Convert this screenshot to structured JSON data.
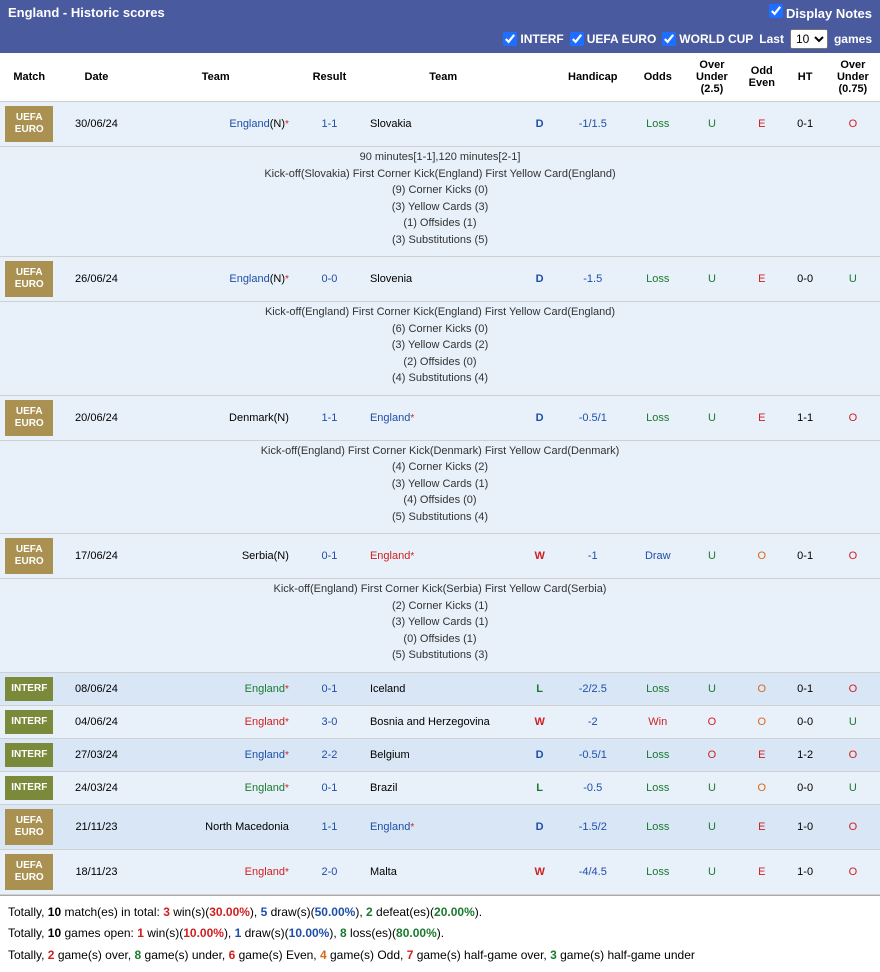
{
  "header": {
    "title": "England - Historic scores",
    "displayNotes": "Display Notes"
  },
  "filters": {
    "interf": "INTERF",
    "uefa": "UEFA EURO",
    "worldcup": "WORLD CUP",
    "lastPrefix": "Last",
    "lastSuffix": "games",
    "lastValue": "10"
  },
  "columns": [
    "Match",
    "Date",
    "Team",
    "Result",
    "Team",
    "",
    "Handicap",
    "Odds",
    "Over Under (2.5)",
    "Odd Even",
    "HT",
    "Over Under (0.75)"
  ],
  "rows": [
    {
      "badge": "UEFA EURO",
      "badgeClass": "badge-uefa",
      "date": "30/06/24",
      "home": "England",
      "homeN": "(N)",
      "homeClass": "c-blue",
      "homeStar": true,
      "result": "1-1",
      "resultClass": "c-blue",
      "away": "Slovakia",
      "awayClass": "c-black",
      "wdl": "D",
      "wdlClass": "c-blue",
      "hcap": "-1/1.5",
      "odds": "Loss",
      "oddsClass": "c-green",
      "ou1": "U",
      "ou1Class": "c-green",
      "oe": "E",
      "oeClass": "c-red",
      "ht": "0-1",
      "ou2": "O",
      "ou2Class": "c-red",
      "rowClass": "row-light",
      "notes": [
        "90 minutes[1-1],120 minutes[2-1]",
        "Kick-off(Slovakia)  First Corner Kick(England)  First Yellow Card(England)",
        "(9) Corner Kicks (0)",
        "(3) Yellow Cards (3)",
        "(1) Offsides (1)",
        "(3) Substitutions (5)"
      ]
    },
    {
      "badge": "UEFA EURO",
      "badgeClass": "badge-uefa",
      "date": "26/06/24",
      "home": "England",
      "homeN": "(N)",
      "homeClass": "c-blue",
      "homeStar": true,
      "result": "0-0",
      "resultClass": "c-blue",
      "away": "Slovenia",
      "awayClass": "c-black",
      "wdl": "D",
      "wdlClass": "c-blue",
      "hcap": "-1.5",
      "odds": "Loss",
      "oddsClass": "c-green",
      "ou1": "U",
      "ou1Class": "c-green",
      "oe": "E",
      "oeClass": "c-red",
      "ht": "0-0",
      "ou2": "U",
      "ou2Class": "c-green",
      "rowClass": "row-light",
      "notes": [
        "Kick-off(England)  First Corner Kick(England)  First Yellow Card(England)",
        "(6) Corner Kicks (0)",
        "(3) Yellow Cards (2)",
        "(2) Offsides (0)",
        "(4) Substitutions (4)"
      ]
    },
    {
      "badge": "UEFA EURO",
      "badgeClass": "badge-uefa",
      "date": "20/06/24",
      "home": "Denmark",
      "homeN": "(N)",
      "homeClass": "c-black",
      "result": "1-1",
      "resultClass": "c-blue",
      "away": "England",
      "awayClass": "c-blue",
      "awayStar": true,
      "wdl": "D",
      "wdlClass": "c-blue",
      "hcap": "-0.5/1",
      "odds": "Loss",
      "oddsClass": "c-green",
      "ou1": "U",
      "ou1Class": "c-green",
      "oe": "E",
      "oeClass": "c-red",
      "ht": "1-1",
      "ou2": "O",
      "ou2Class": "c-red",
      "rowClass": "row-light",
      "notes": [
        "Kick-off(England)  First Corner Kick(Denmark)  First Yellow Card(Denmark)",
        "(4) Corner Kicks (2)",
        "(3) Yellow Cards (1)",
        "(4) Offsides (0)",
        "(5) Substitutions (4)"
      ]
    },
    {
      "badge": "UEFA EURO",
      "badgeClass": "badge-uefa",
      "date": "17/06/24",
      "home": "Serbia",
      "homeN": "(N)",
      "homeClass": "c-black",
      "result": "0-1",
      "resultClass": "c-blue",
      "away": "England",
      "awayClass": "c-red",
      "awayStar": true,
      "wdl": "W",
      "wdlClass": "c-red",
      "hcap": "-1",
      "odds": "Draw",
      "oddsClass": "c-blue",
      "ou1": "U",
      "ou1Class": "c-green",
      "oe": "O",
      "oeClass": "c-orange",
      "ht": "0-1",
      "ou2": "O",
      "ou2Class": "c-red",
      "rowClass": "row-light",
      "notes": [
        "Kick-off(England)  First Corner Kick(Serbia)  First Yellow Card(Serbia)",
        "(2) Corner Kicks (1)",
        "(3) Yellow Cards (1)",
        "(0) Offsides (1)",
        "(5) Substitutions (3)"
      ]
    },
    {
      "badge": "INTERF",
      "badgeClass": "badge-interf",
      "date": "08/06/24",
      "home": "England",
      "homeClass": "c-green",
      "homeStar": true,
      "result": "0-1",
      "resultClass": "c-blue",
      "away": "Iceland",
      "awayClass": "c-black",
      "wdl": "L",
      "wdlClass": "c-green",
      "hcap": "-2/2.5",
      "odds": "Loss",
      "oddsClass": "c-green",
      "ou1": "U",
      "ou1Class": "c-green",
      "oe": "O",
      "oeClass": "c-orange",
      "ht": "0-1",
      "ou2": "O",
      "ou2Class": "c-red",
      "rowClass": "row-lighter"
    },
    {
      "badge": "INTERF",
      "badgeClass": "badge-interf",
      "date": "04/06/24",
      "home": "England",
      "homeClass": "c-red",
      "homeStar": true,
      "result": "3-0",
      "resultClass": "c-blue",
      "away": "Bosnia and Herzegovina",
      "awayClass": "c-black",
      "wdl": "W",
      "wdlClass": "c-red",
      "hcap": "-2",
      "odds": "Win",
      "oddsClass": "c-red",
      "ou1": "O",
      "ou1Class": "c-red",
      "oe": "O",
      "oeClass": "c-orange",
      "ht": "0-0",
      "ou2": "U",
      "ou2Class": "c-green",
      "rowClass": "row-light"
    },
    {
      "badge": "INTERF",
      "badgeClass": "badge-interf",
      "date": "27/03/24",
      "home": "England",
      "homeClass": "c-blue",
      "homeStar": true,
      "result": "2-2",
      "resultClass": "c-blue",
      "away": "Belgium",
      "awayClass": "c-black",
      "wdl": "D",
      "wdlClass": "c-blue",
      "hcap": "-0.5/1",
      "odds": "Loss",
      "oddsClass": "c-green",
      "ou1": "O",
      "ou1Class": "c-red",
      "oe": "E",
      "oeClass": "c-red",
      "ht": "1-2",
      "ou2": "O",
      "ou2Class": "c-red",
      "rowClass": "row-lighter"
    },
    {
      "badge": "INTERF",
      "badgeClass": "badge-interf",
      "date": "24/03/24",
      "home": "England",
      "homeClass": "c-green",
      "homeStar": true,
      "result": "0-1",
      "resultClass": "c-blue",
      "away": "Brazil",
      "awayClass": "c-black",
      "wdl": "L",
      "wdlClass": "c-green",
      "hcap": "-0.5",
      "odds": "Loss",
      "oddsClass": "c-green",
      "ou1": "U",
      "ou1Class": "c-green",
      "oe": "O",
      "oeClass": "c-orange",
      "ht": "0-0",
      "ou2": "U",
      "ou2Class": "c-green",
      "rowClass": "row-light"
    },
    {
      "badge": "UEFA EURO",
      "badgeClass": "badge-uefa",
      "date": "21/11/23",
      "home": "North Macedonia",
      "homeClass": "c-black",
      "result": "1-1",
      "resultClass": "c-blue",
      "away": "England",
      "awayClass": "c-blue",
      "awayStar": true,
      "wdl": "D",
      "wdlClass": "c-blue",
      "hcap": "-1.5/2",
      "odds": "Loss",
      "oddsClass": "c-green",
      "ou1": "U",
      "ou1Class": "c-green",
      "oe": "E",
      "oeClass": "c-red",
      "ht": "1-0",
      "ou2": "O",
      "ou2Class": "c-red",
      "rowClass": "row-lighter"
    },
    {
      "badge": "UEFA EURO",
      "badgeClass": "badge-uefa",
      "date": "18/11/23",
      "home": "England",
      "homeClass": "c-red",
      "homeStar": true,
      "result": "2-0",
      "resultClass": "c-blue",
      "away": "Malta",
      "awayClass": "c-black",
      "wdl": "W",
      "wdlClass": "c-red",
      "hcap": "-4/4.5",
      "odds": "Loss",
      "oddsClass": "c-green",
      "ou1": "U",
      "ou1Class": "c-green",
      "oe": "E",
      "oeClass": "c-red",
      "ht": "1-0",
      "ou2": "O",
      "ou2Class": "c-red",
      "rowClass": "row-light"
    }
  ],
  "summary": [
    {
      "parts": [
        {
          "t": "Totally, "
        },
        {
          "t": "10",
          "c": "bold"
        },
        {
          "t": " match(es) in total: "
        },
        {
          "t": "3",
          "c": "c-red"
        },
        {
          "t": " win(s)("
        },
        {
          "t": "30.00%",
          "c": "c-red"
        },
        {
          "t": "), "
        },
        {
          "t": "5",
          "c": "c-blue"
        },
        {
          "t": " draw(s)("
        },
        {
          "t": "50.00%",
          "c": "c-blue"
        },
        {
          "t": "), "
        },
        {
          "t": "2",
          "c": "c-green"
        },
        {
          "t": " defeat(es)("
        },
        {
          "t": "20.00%",
          "c": "c-green"
        },
        {
          "t": ")."
        }
      ]
    },
    {
      "parts": [
        {
          "t": "Totally, "
        },
        {
          "t": "10",
          "c": "bold"
        },
        {
          "t": " games open: "
        },
        {
          "t": "1",
          "c": "c-red"
        },
        {
          "t": " win(s)("
        },
        {
          "t": "10.00%",
          "c": "c-red"
        },
        {
          "t": "), "
        },
        {
          "t": "1",
          "c": "c-blue"
        },
        {
          "t": " draw(s)("
        },
        {
          "t": "10.00%",
          "c": "c-blue"
        },
        {
          "t": "), "
        },
        {
          "t": "8",
          "c": "c-green"
        },
        {
          "t": " loss(es)("
        },
        {
          "t": "80.00%",
          "c": "c-green"
        },
        {
          "t": ")."
        }
      ]
    },
    {
      "parts": [
        {
          "t": "Totally, "
        },
        {
          "t": "2",
          "c": "c-red"
        },
        {
          "t": " game(s) over, "
        },
        {
          "t": "8",
          "c": "c-green"
        },
        {
          "t": " game(s) under, "
        },
        {
          "t": "6",
          "c": "c-red"
        },
        {
          "t": " game(s) Even, "
        },
        {
          "t": "4",
          "c": "c-orange"
        },
        {
          "t": " game(s) Odd, "
        },
        {
          "t": "7",
          "c": "c-red"
        },
        {
          "t": " game(s) half-game over, "
        },
        {
          "t": "3",
          "c": "c-green"
        },
        {
          "t": " game(s) half-game under"
        }
      ]
    }
  ]
}
